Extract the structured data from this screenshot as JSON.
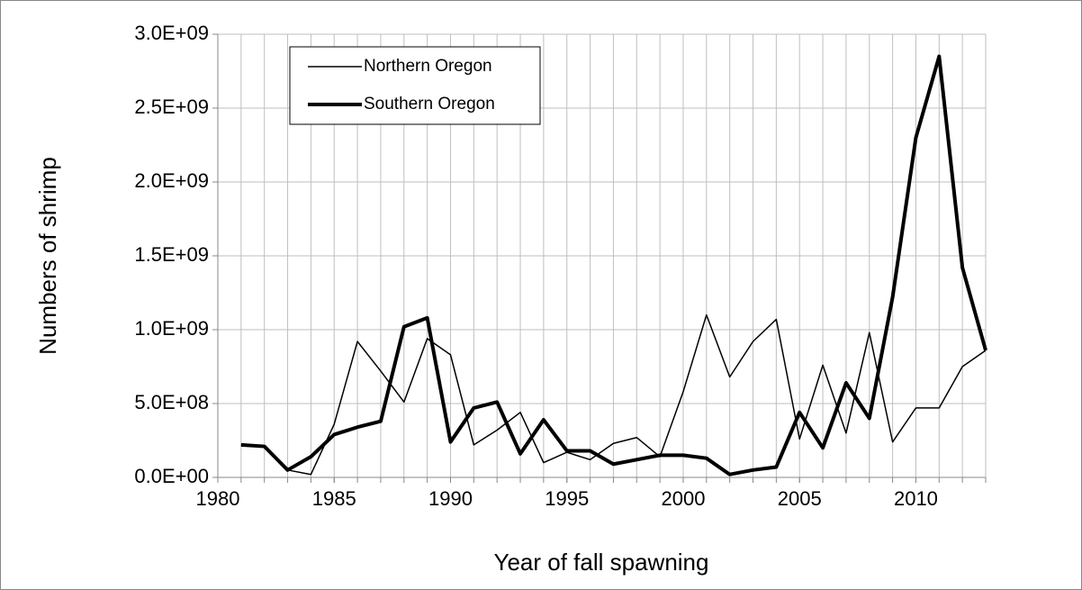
{
  "chart_data": {
    "type": "line",
    "x_label": "Year of fall spawning",
    "y_label": "Numbers of shrimp",
    "x": [
      1981,
      1982,
      1983,
      1984,
      1985,
      1986,
      1987,
      1988,
      1989,
      1990,
      1991,
      1992,
      1993,
      1994,
      1995,
      1996,
      1997,
      1998,
      1999,
      2000,
      2001,
      2002,
      2003,
      2004,
      2005,
      2006,
      2007,
      2008,
      2009,
      2010,
      2011,
      2012,
      2013
    ],
    "series": [
      {
        "name": "Northern Oregon",
        "color": "#000000",
        "linewidth": 1.5,
        "values": [
          220000000,
          210000000,
          50000000,
          20000000,
          360000000,
          920000000,
          720000000,
          510000000,
          940000000,
          830000000,
          220000000,
          320000000,
          440000000,
          100000000,
          170000000,
          120000000,
          230000000,
          270000000,
          140000000,
          580000000,
          1100000000,
          680000000,
          920000000,
          1070000000,
          260000000,
          760000000,
          300000000,
          980000000,
          240000000,
          470000000,
          470000000,
          750000000,
          860000000
        ]
      },
      {
        "name": "Southern Oregon",
        "color": "#000000",
        "linewidth": 4,
        "values": [
          220000000,
          210000000,
          50000000,
          140000000,
          290000000,
          340000000,
          380000000,
          1020000000,
          1080000000,
          240000000,
          470000000,
          510000000,
          160000000,
          390000000,
          180000000,
          180000000,
          90000000,
          120000000,
          150000000,
          150000000,
          130000000,
          20000000,
          50000000,
          70000000,
          440000000,
          200000000,
          640000000,
          400000000,
          1220000000,
          2300000000,
          2850000000,
          1420000000,
          860000000
        ]
      }
    ],
    "xlim": [
      1980,
      2013
    ],
    "xticks": [
      1980,
      1985,
      1990,
      1995,
      2000,
      2005,
      2010
    ],
    "x_minor_ticks": [
      1981,
      1982,
      1983,
      1984,
      1985,
      1986,
      1987,
      1988,
      1989,
      1990,
      1991,
      1992,
      1993,
      1994,
      1995,
      1996,
      1997,
      1998,
      1999,
      2000,
      2001,
      2002,
      2003,
      2004,
      2005,
      2006,
      2007,
      2008,
      2009,
      2010,
      2011,
      2012,
      2013
    ],
    "ylim": [
      0,
      3000000000
    ],
    "yticks": [
      {
        "value": 0,
        "label": "0.0E+00"
      },
      {
        "value": 500000000,
        "label": "5.0E+08"
      },
      {
        "value": 1000000000,
        "label": "1.0E+09"
      },
      {
        "value": 1500000000,
        "label": "1.5E+09"
      },
      {
        "value": 2000000000,
        "label": "2.0E+09"
      },
      {
        "value": 2500000000,
        "label": "2.5E+09"
      },
      {
        "value": 3000000000,
        "label": "3.0E+09"
      }
    ],
    "grid": true,
    "legend": "upper left"
  }
}
